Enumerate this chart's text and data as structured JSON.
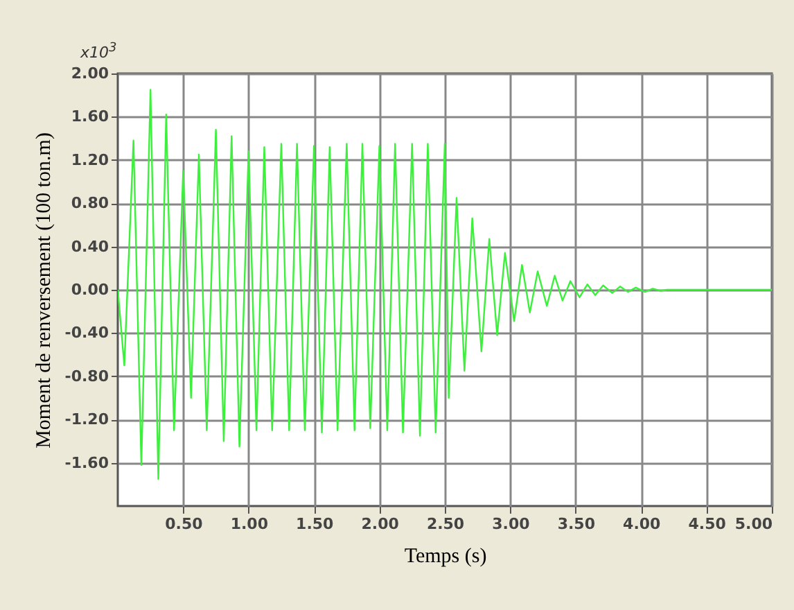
{
  "chart_data": {
    "type": "line",
    "xlabel": "Temps (s)",
    "ylabel": "Moment de renversement  (100 ton.m)",
    "annotations": [
      "x10$^{3}$"
    ],
    "xlim": [
      0,
      5
    ],
    "ylim": [
      -2,
      2
    ],
    "xticks": [
      {
        "value": 0.5,
        "label": "0.50"
      },
      {
        "value": 1,
        "label": "1.00"
      },
      {
        "value": 1.5,
        "label": "1.50"
      },
      {
        "value": 2,
        "label": "2.00"
      },
      {
        "value": 2.5,
        "label": "2.50"
      },
      {
        "value": 3,
        "label": "3.00"
      },
      {
        "value": 3.5,
        "label": "3.50"
      },
      {
        "value": 4,
        "label": "4.00"
      },
      {
        "value": 4.5,
        "label": "4.50"
      },
      {
        "value": 5,
        "label": "5.00"
      }
    ],
    "yticks": [
      {
        "value": -1.6,
        "label": "-1.60"
      },
      {
        "value": -1.2,
        "label": "-1.20"
      },
      {
        "value": -0.8,
        "label": "-0.80"
      },
      {
        "value": -0.4,
        "label": "-0.40"
      },
      {
        "value": 0,
        "label": "0.00"
      },
      {
        "value": 0.4,
        "label": "0.40"
      },
      {
        "value": 0.8,
        "label": "0.80"
      },
      {
        "value": 1.2,
        "label": "1.20"
      },
      {
        "value": 1.6,
        "label": "1.60"
      },
      {
        "value": 2,
        "label": "2.00"
      }
    ],
    "grid": true,
    "marker": "none",
    "line_style": "solid",
    "series": [
      {
        "color": "#3cf03c",
        "x": [
          0,
          0.05,
          0.12,
          0.18,
          0.25,
          0.31,
          0.37,
          0.43,
          0.5,
          0.56,
          0.62,
          0.68,
          0.75,
          0.81,
          0.87,
          0.93,
          1.0,
          1.06,
          1.12,
          1.18,
          1.25,
          1.31,
          1.37,
          1.43,
          1.5,
          1.56,
          1.62,
          1.68,
          1.75,
          1.81,
          1.87,
          1.93,
          2.0,
          2.06,
          2.12,
          2.18,
          2.25,
          2.31,
          2.37,
          2.43,
          2.5,
          2.53,
          2.59,
          2.65,
          2.71,
          2.78,
          2.84,
          2.9,
          2.96,
          3.03,
          3.09,
          3.15,
          3.21,
          3.28,
          3.34,
          3.4,
          3.46,
          3.53,
          3.59,
          3.65,
          3.71,
          3.78,
          3.84,
          3.9,
          3.96,
          4.03,
          4.09,
          4.15,
          4.2,
          5.0
        ],
        "values": [
          0,
          -0.7,
          1.38,
          -1.62,
          1.85,
          -1.75,
          1.62,
          -1.3,
          1.1,
          -1.0,
          1.25,
          -1.3,
          1.48,
          -1.4,
          1.42,
          -1.45,
          1.28,
          -1.3,
          1.32,
          -1.3,
          1.35,
          -1.3,
          1.35,
          -1.3,
          1.33,
          -1.32,
          1.32,
          -1.3,
          1.35,
          -1.3,
          1.35,
          -1.28,
          1.33,
          -1.3,
          1.35,
          -1.32,
          1.35,
          -1.35,
          1.35,
          -1.32,
          1.35,
          -1.0,
          0.85,
          -0.75,
          0.66,
          -0.57,
          0.47,
          -0.42,
          0.34,
          -0.29,
          0.23,
          -0.21,
          0.17,
          -0.15,
          0.13,
          -0.1,
          0.08,
          -0.07,
          0.05,
          -0.05,
          0.04,
          -0.03,
          0.03,
          -0.02,
          0.02,
          -0.02,
          0.01,
          -0.01,
          0,
          0
        ]
      }
    ]
  }
}
